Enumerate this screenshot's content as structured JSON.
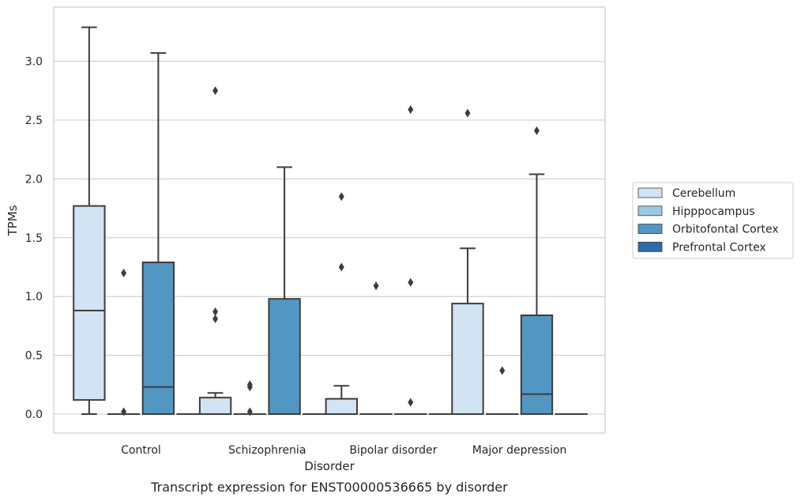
{
  "chart_data": {
    "type": "box",
    "caption": "Transcript expression for ENST00000536665 by disorder",
    "xlabel": "Disorder",
    "ylabel": "TPMs",
    "ylim": [
      -0.16,
      3.47
    ],
    "yticks": [
      "0.0",
      "0.5",
      "1.0",
      "1.5",
      "2.0",
      "2.5",
      "3.0"
    ],
    "grid": "horizontal",
    "legend_position": "right",
    "categories": [
      "Control",
      "Schizophrenia",
      "Bipolar disorder",
      "Major depression"
    ],
    "series": [
      {
        "name": "Cerebellum",
        "color": "#d2e3f3",
        "boxes": [
          {
            "whislo": 0.0,
            "q1": 0.12,
            "med": 0.88,
            "q3": 1.77,
            "whishi": 3.29,
            "fliers": []
          },
          {
            "whislo": 0.0,
            "q1": 0.0,
            "med": 0.0,
            "q3": 0.14,
            "whishi": 0.18,
            "fliers": [
              0.81,
              0.87,
              2.75
            ]
          },
          {
            "whislo": 0.0,
            "q1": 0.0,
            "med": 0.0,
            "q3": 0.13,
            "whishi": 0.24,
            "fliers": [
              1.25,
              1.85
            ]
          },
          {
            "whislo": 0.0,
            "q1": 0.0,
            "med": 0.0,
            "q3": 0.94,
            "whishi": 1.41,
            "fliers": [
              2.56
            ]
          }
        ]
      },
      {
        "name": "Hipppocampus",
        "color": "#9ac8e0",
        "boxes": [
          {
            "whislo": 0.0,
            "q1": 0.0,
            "med": 0.0,
            "q3": 0.0,
            "whishi": 0.0,
            "fliers": [
              0.02,
              1.2
            ]
          },
          {
            "whislo": 0.0,
            "q1": 0.0,
            "med": 0.0,
            "q3": 0.0,
            "whishi": 0.0,
            "fliers": [
              0.02,
              0.23,
              0.25
            ]
          },
          {
            "whislo": 0.0,
            "q1": 0.0,
            "med": 0.0,
            "q3": 0.0,
            "whishi": 0.0,
            "fliers": [
              1.09
            ]
          },
          {
            "whislo": 0.0,
            "q1": 0.0,
            "med": 0.0,
            "q3": 0.0,
            "whishi": 0.0,
            "fliers": [
              0.37
            ]
          }
        ]
      },
      {
        "name": "Orbitofontal Cortex",
        "color": "#5296c4",
        "boxes": [
          {
            "whislo": 0.0,
            "q1": 0.0,
            "med": 0.23,
            "q3": 1.29,
            "whishi": 3.07,
            "fliers": []
          },
          {
            "whislo": 0.0,
            "q1": 0.0,
            "med": 0.0,
            "q3": 0.98,
            "whishi": 2.1,
            "fliers": []
          },
          {
            "whislo": 0.0,
            "q1": 0.0,
            "med": 0.0,
            "q3": 0.0,
            "whishi": 0.0,
            "fliers": [
              0.1,
              1.12,
              2.59
            ]
          },
          {
            "whislo": 0.0,
            "q1": 0.0,
            "med": 0.17,
            "q3": 0.84,
            "whishi": 2.04,
            "fliers": [
              2.41
            ]
          }
        ]
      },
      {
        "name": "Prefrontal Cortex",
        "color": "#2b6ca9",
        "boxes": [
          {
            "whislo": 0.0,
            "q1": 0.0,
            "med": 0.0,
            "q3": 0.0,
            "whishi": 0.0,
            "fliers": []
          },
          {
            "whislo": 0.0,
            "q1": 0.0,
            "med": 0.0,
            "q3": 0.0,
            "whishi": 0.0,
            "fliers": []
          },
          {
            "whislo": 0.0,
            "q1": 0.0,
            "med": 0.0,
            "q3": 0.0,
            "whishi": 0.0,
            "fliers": []
          },
          {
            "whislo": 0.0,
            "q1": 0.0,
            "med": 0.0,
            "q3": 0.0,
            "whishi": 0.0,
            "fliers": []
          }
        ]
      }
    ]
  }
}
